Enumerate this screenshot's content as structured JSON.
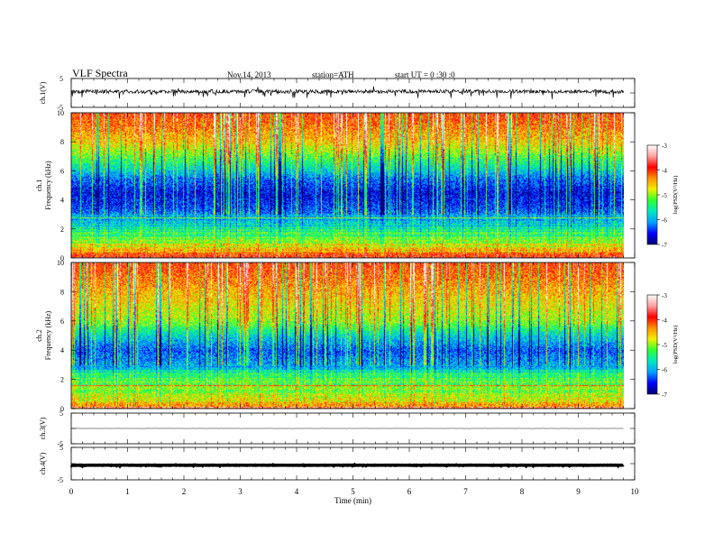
{
  "header": {
    "title": "VLF  Spectra",
    "date": "Nov.14, 2013",
    "station": "station=ATH",
    "start": "start  UT  =  0 :30 :0"
  },
  "chart_data": [
    {
      "type": "line",
      "panel": "ch1-waveform",
      "ylabel": "ch.1(V)",
      "ylim": [
        -5,
        5
      ],
      "yticks": [
        "5",
        "-5"
      ],
      "xlim": [
        0,
        10
      ],
      "series": [
        {
          "baseline_V": 0.5,
          "noise_amplitude_V": 2.5
        }
      ]
    },
    {
      "type": "heatmap",
      "panel": "ch1-spectrogram",
      "ylabel": "ch.1\nFrequency (kHz)",
      "ylim": [
        0,
        10
      ],
      "yticks": [
        "0",
        "2",
        "4",
        "6",
        "8",
        "10"
      ],
      "xlim": [
        0,
        9.8
      ],
      "colorbar": {
        "label": "log(PSD(V²/Hz)",
        "range": [
          -7,
          -3
        ],
        "ticks": [
          "-3",
          "-4",
          "-5",
          "-6",
          "-7"
        ],
        "colors": [
          "#000070",
          "#0000ff",
          "#00a0ff",
          "#00e8c0",
          "#30ff30",
          "#f0f000",
          "#ff9000",
          "#ff0000",
          "#ffa0a0",
          "#ffffff"
        ]
      },
      "band_profile_kHz": [
        {
          "f": 10,
          "level": -4.0
        },
        {
          "f": 8,
          "level": -4.6
        },
        {
          "f": 6.5,
          "level": -5.5
        },
        {
          "f": 5.5,
          "level": -6.2
        },
        {
          "f": 4.5,
          "level": -6.6
        },
        {
          "f": 3.5,
          "level": -6.4
        },
        {
          "f": 2.5,
          "level": -5.8
        },
        {
          "f": 1.5,
          "level": -5.3
        },
        {
          "f": 0.5,
          "level": -4.5
        },
        {
          "f": 0,
          "level": -3.5
        }
      ]
    },
    {
      "type": "heatmap",
      "panel": "ch2-spectrogram",
      "ylabel": "ch.2\nFrequency (kHz)",
      "ylim": [
        0,
        10
      ],
      "yticks": [
        "0",
        "2",
        "4",
        "6",
        "8",
        "10"
      ],
      "xlim": [
        0,
        9.8
      ],
      "colorbar": {
        "label": "log(PSD(V²/Hz)",
        "range": [
          -7,
          -3
        ],
        "ticks": [
          "-3",
          "-4",
          "-5",
          "-6",
          "-7"
        ]
      },
      "band_profile_kHz": [
        {
          "f": 10,
          "level": -4.0
        },
        {
          "f": 8,
          "level": -4.5
        },
        {
          "f": 6,
          "level": -5.0
        },
        {
          "f": 5,
          "level": -5.8
        },
        {
          "f": 4,
          "level": -6.3
        },
        {
          "f": 3,
          "level": -6.0
        },
        {
          "f": 2,
          "level": -5.2
        },
        {
          "f": 1,
          "level": -5.0
        },
        {
          "f": 0,
          "level": -4.2
        }
      ]
    },
    {
      "type": "line",
      "panel": "ch3-waveform",
      "ylabel": "ch.3(V)",
      "ylim": [
        -5,
        5
      ],
      "yticks": [
        "5",
        "-5"
      ],
      "xlim": [
        0,
        9.8
      ],
      "series": [
        {
          "baseline_V": 0,
          "noise_amplitude_V": 0.15
        }
      ]
    },
    {
      "type": "line",
      "panel": "ch4-waveform",
      "ylabel": "ch.4(V)",
      "ylim": [
        -5,
        5
      ],
      "yticks": [
        "5",
        "-5"
      ],
      "xlim": [
        0,
        9.8
      ],
      "series": [
        {
          "baseline_V": -0.5,
          "noise_amplitude_V": 0.2
        }
      ]
    }
  ],
  "xaxis": {
    "label": "Time  (min)",
    "range": [
      0,
      10
    ],
    "ticks": [
      "0",
      "1",
      "2",
      "3",
      "4",
      "5",
      "6",
      "7",
      "8",
      "9",
      "10"
    ]
  }
}
